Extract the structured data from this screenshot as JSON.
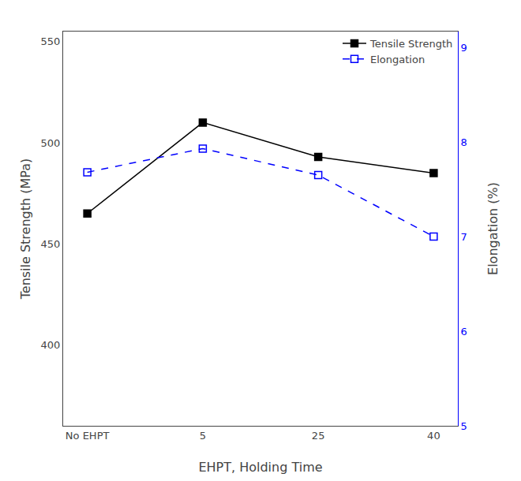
{
  "chart_data": {
    "type": "line",
    "categories": [
      "No EHPT",
      "5",
      "25",
      "40"
    ],
    "xlabel": "EHPT, Holding Time",
    "ylabel": "Tensile Strength (MPa)",
    "y2label": "Elongation (%)",
    "series": [
      {
        "name": "Tensile Strength",
        "color": "#000000",
        "values": [
          465,
          510,
          493,
          485
        ],
        "marker": "square",
        "line_style": "solid"
      },
      {
        "name": "Elongation",
        "color": "#0000FF",
        "values": [
          7.68,
          7.93,
          7.65,
          7.0
        ],
        "axis": "y2",
        "marker": "square-open",
        "line_style": "dashed"
      }
    ],
    "ylim": [
      360,
      555
    ],
    "yticks": [
      400,
      450,
      500,
      550
    ],
    "y2lim": [
      5,
      9.167
    ],
    "y2ticks": [
      5,
      6,
      7,
      8,
      9
    ],
    "legend": "upper right",
    "grid": false
  }
}
